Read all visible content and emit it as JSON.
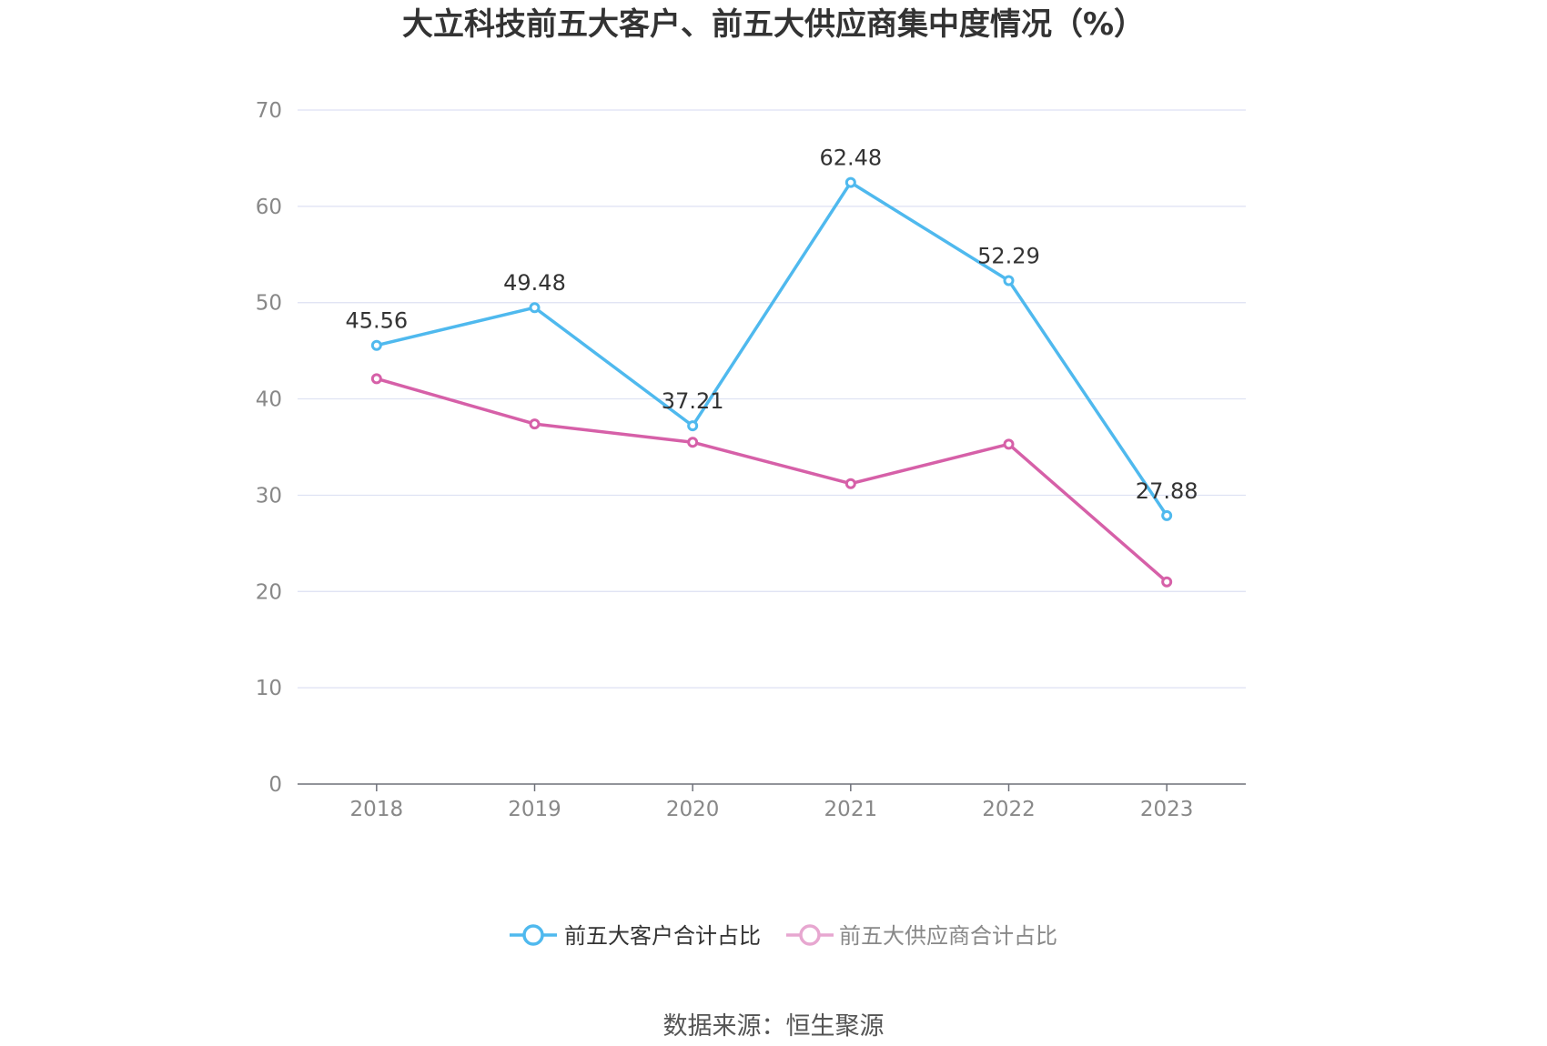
{
  "chart_data": {
    "type": "line",
    "title": "大立科技前五大客户、前五大供应商集中度情况（%）",
    "categories": [
      "2018",
      "2019",
      "2020",
      "2021",
      "2022",
      "2023"
    ],
    "series": [
      {
        "name": "前五大客户合计占比",
        "values": [
          45.56,
          49.48,
          37.21,
          62.48,
          52.29,
          27.88
        ],
        "color": "#4fb9ee",
        "show_labels": true
      },
      {
        "name": "前五大供应商合计占比",
        "values": [
          42.1,
          37.4,
          35.5,
          31.2,
          35.3,
          21.0
        ],
        "color": "#d660a8",
        "legend_color": "#e7a7d0",
        "show_labels": false
      }
    ],
    "ylim": [
      0,
      70
    ],
    "yticks": [
      0,
      10,
      20,
      30,
      40,
      50,
      60,
      70
    ],
    "grid": true,
    "legend_position": "bottom"
  },
  "source": "数据来源：恒生聚源"
}
